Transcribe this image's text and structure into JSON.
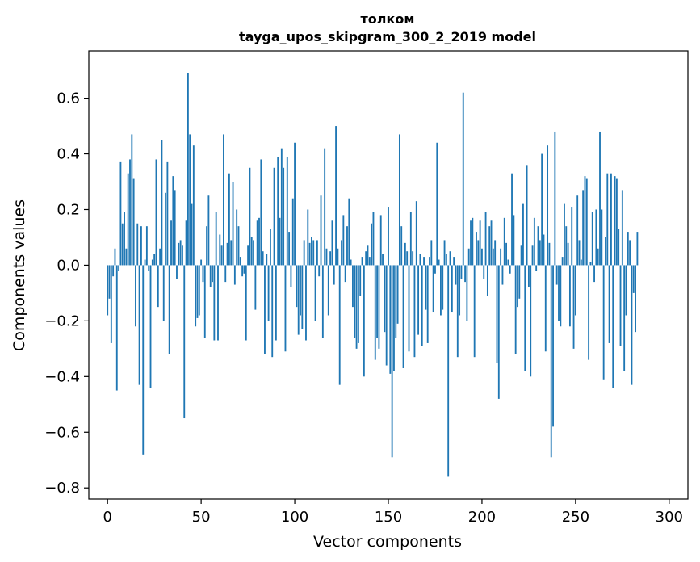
{
  "chart_data": {
    "type": "bar",
    "title": "толком",
    "subtitle": "tayga_upos_skipgram_300_2_2019 model",
    "xlabel": "Vector components",
    "ylabel": "Components values",
    "xlim": [
      -10,
      310
    ],
    "ylim": [
      -0.84,
      0.77
    ],
    "xticks": [
      0,
      50,
      100,
      150,
      200,
      250,
      300
    ],
    "yticks": [
      -0.8,
      -0.6,
      -0.4,
      -0.2,
      0.0,
      0.2,
      0.4,
      0.6
    ],
    "ytick_labels": [
      "−0.8",
      "−0.6",
      "−0.4",
      "−0.2",
      "0.0",
      "0.2",
      "0.4",
      "0.6"
    ],
    "bar_color": "#1f77b4",
    "grid": false,
    "values": [
      -0.18,
      -0.12,
      -0.28,
      -0.04,
      0.06,
      -0.45,
      -0.02,
      0.37,
      0.15,
      0.19,
      0.06,
      0.33,
      0.38,
      0.47,
      0.31,
      -0.22,
      0.15,
      -0.43,
      0.14,
      -0.68,
      0.02,
      0.14,
      -0.02,
      -0.44,
      0.02,
      0.04,
      0.38,
      -0.15,
      0.06,
      0.45,
      -0.2,
      0.26,
      0.37,
      -0.32,
      0.16,
      0.32,
      0.27,
      -0.05,
      0.08,
      0.09,
      0.07,
      -0.55,
      0.16,
      0.69,
      0.47,
      0.22,
      0.43,
      -0.22,
      -0.19,
      -0.18,
      0.02,
      -0.06,
      -0.26,
      0.14,
      0.25,
      -0.08,
      -0.06,
      -0.27,
      0.19,
      -0.27,
      0.11,
      0.07,
      0.47,
      -0.06,
      0.08,
      0.33,
      0.09,
      0.3,
      -0.07,
      0.2,
      0.14,
      0.03,
      -0.04,
      -0.03,
      -0.27,
      0.07,
      0.35,
      0.1,
      0.09,
      -0.16,
      0.16,
      0.17,
      0.38,
      0.05,
      -0.32,
      0.04,
      -0.2,
      0.13,
      -0.33,
      0.35,
      -0.27,
      0.39,
      0.17,
      0.42,
      0.35,
      -0.31,
      0.39,
      0.12,
      -0.08,
      0.24,
      0.44,
      -0.15,
      -0.25,
      -0.18,
      -0.23,
      0.09,
      -0.27,
      0.2,
      0.08,
      0.1,
      0.09,
      -0.2,
      0.09,
      -0.04,
      0.25,
      -0.26,
      0.42,
      0.06,
      -0.18,
      0.05,
      0.16,
      -0.07,
      0.5,
      0.06,
      -0.43,
      0.09,
      0.18,
      -0.06,
      0.14,
      0.24,
      0.02,
      -0.15,
      -0.26,
      -0.3,
      -0.28,
      -0.11,
      0.03,
      -0.4,
      0.05,
      0.07,
      0.03,
      0.15,
      0.19,
      -0.34,
      -0.26,
      -0.3,
      0.18,
      0.04,
      -0.24,
      -0.36,
      0.21,
      -0.39,
      -0.69,
      -0.38,
      -0.26,
      -0.21,
      0.47,
      0.14,
      -0.37,
      0.08,
      0.05,
      -0.31,
      0.19,
      0.05,
      -0.33,
      0.23,
      -0.25,
      0.04,
      -0.29,
      0.03,
      -0.16,
      -0.28,
      0.03,
      0.09,
      -0.17,
      -0.03,
      0.44,
      0.02,
      -0.18,
      -0.16,
      0.09,
      0.04,
      -0.76,
      0.05,
      -0.17,
      0.03,
      -0.07,
      -0.33,
      -0.18,
      -0.05,
      0.62,
      -0.06,
      -0.2,
      0.06,
      0.16,
      0.17,
      -0.33,
      0.12,
      0.09,
      0.16,
      0.06,
      -0.05,
      0.19,
      -0.11,
      0.14,
      0.16,
      0.06,
      0.09,
      -0.35,
      -0.48,
      0.06,
      -0.07,
      0.17,
      0.08,
      0.02,
      -0.03,
      0.33,
      0.18,
      -0.32,
      -0.15,
      -0.12,
      0.07,
      0.22,
      -0.38,
      0.36,
      -0.08,
      -0.4,
      0.07,
      0.17,
      -0.02,
      0.14,
      0.09,
      0.4,
      0.11,
      -0.31,
      0.43,
      0.08,
      -0.69,
      -0.58,
      0.48,
      -0.07,
      -0.2,
      -0.22,
      0.03,
      0.22,
      0.14,
      0.08,
      -0.22,
      0.21,
      -0.3,
      -0.18,
      0.25,
      0.09,
      0.02,
      0.27,
      0.32,
      0.31,
      -0.34,
      0.01,
      0.19,
      -0.06,
      0.2,
      0.06,
      0.48,
      0.2,
      -0.41,
      0.1,
      0.33,
      -0.28,
      0.33,
      -0.44,
      0.32,
      0.31,
      0.13,
      -0.29,
      0.27,
      -0.38,
      -0.18,
      0.12,
      0.09,
      -0.43,
      -0.1,
      -0.24,
      0.12
    ]
  }
}
